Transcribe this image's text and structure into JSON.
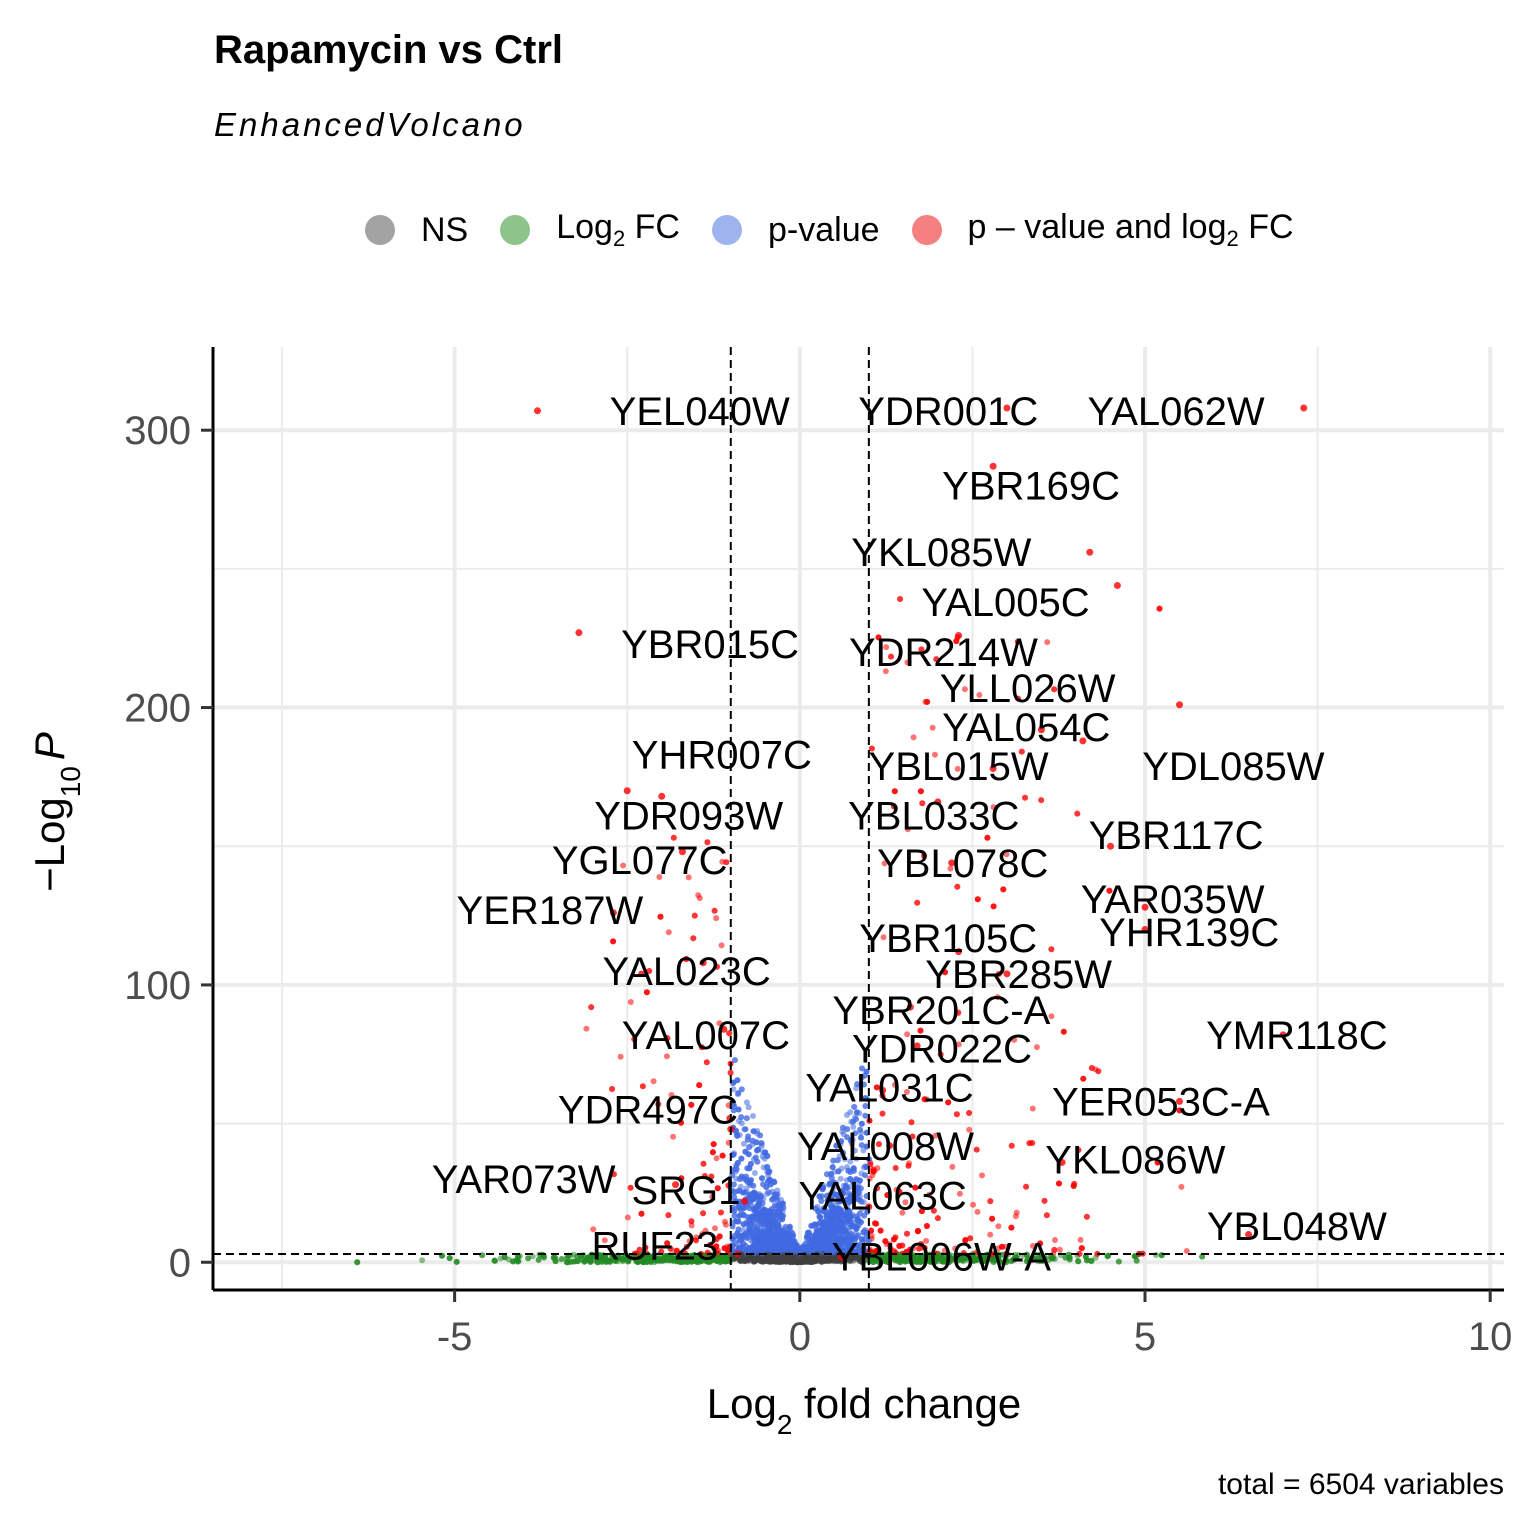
{
  "chart_data": {
    "type": "scatter",
    "title": "Rapamycin vs Ctrl",
    "subtitle": "EnhancedVolcano",
    "caption": "total = 6504 variables",
    "xlabel": {
      "main": "Log",
      "sub": "2",
      "rest": " fold change"
    },
    "ylabel": {
      "minus": "−",
      "main": "Log",
      "sub": "10",
      "italic": "P"
    },
    "xlim": [
      -8.5,
      10.2
    ],
    "ylim": [
      -10,
      330
    ],
    "xticks": [
      -5,
      0,
      5,
      10
    ],
    "xtick_labels": [
      "-5",
      "0",
      "5",
      "10"
    ],
    "yticks": [
      0,
      100,
      200,
      300
    ],
    "ytick_labels": [
      "0",
      "100",
      "200",
      "300"
    ],
    "grid": true,
    "legend_position": "top",
    "fc_cutoff": 1,
    "p_cutoff_line": 3,
    "legend": [
      {
        "key": "ns",
        "label": "NS",
        "color": "#999999"
      },
      {
        "key": "fc",
        "label": "Log",
        "sub": "2",
        "rest": " FC",
        "color": "#228B22"
      },
      {
        "key": "p",
        "label": "p-value",
        "color": "#4169E1"
      },
      {
        "key": "pfc",
        "label": "p – value and log",
        "sub": "2",
        "rest": " FC",
        "color": "#FF0000"
      }
    ],
    "colors": {
      "ns": "#404040",
      "fc": "#228B22",
      "p": "#4169E1",
      "pfc": "#FF0000"
    },
    "labeled_genes": [
      {
        "name": "YEL040W",
        "x": -3.8,
        "y": 307,
        "lx": -1.45,
        "ly": 307
      },
      {
        "name": "YDR001C",
        "x": 3.0,
        "y": 308,
        "lx": 2.15,
        "ly": 307
      },
      {
        "name": "YAL062W",
        "x": 7.3,
        "y": 308,
        "lx": 5.45,
        "ly": 307
      },
      {
        "name": "YBR169C",
        "x": 2.8,
        "y": 287,
        "lx": 3.35,
        "ly": 280
      },
      {
        "name": "YKL085W",
        "x": 4.2,
        "y": 256,
        "lx": 2.05,
        "ly": 256
      },
      {
        "name": "YAL005C",
        "x": 4.6,
        "y": 244,
        "lx": 2.98,
        "ly": 238
      },
      {
        "name": "YBR015C",
        "x": -3.2,
        "y": 227,
        "lx": -1.3,
        "ly": 223
      },
      {
        "name": "YDR214W",
        "x": 2.3,
        "y": 226,
        "lx": 2.08,
        "ly": 220
      },
      {
        "name": "YLL026W",
        "x": 5.5,
        "y": 201,
        "lx": 3.3,
        "ly": 207
      },
      {
        "name": "YAL054C",
        "x": 3.5,
        "y": 192,
        "lx": 3.28,
        "ly": 193
      },
      {
        "name": "YHR007C",
        "x": -2.5,
        "y": 170,
        "lx": -1.13,
        "ly": 183
      },
      {
        "name": "YBL015W",
        "x": 2.8,
        "y": 178,
        "lx": 2.3,
        "ly": 179
      },
      {
        "name": "YDL085W",
        "x": 4.1,
        "y": 188,
        "lx": 6.28,
        "ly": 179
      },
      {
        "name": "YDR093W",
        "x": -2.0,
        "y": 168,
        "lx": -1.61,
        "ly": 161
      },
      {
        "name": "YBL033C",
        "x": 2.0,
        "y": 166,
        "lx": 1.94,
        "ly": 161
      },
      {
        "name": "YBR117C",
        "x": 4.5,
        "y": 150,
        "lx": 5.45,
        "ly": 154
      },
      {
        "name": "YGL077C",
        "x": -1.7,
        "y": 148,
        "lx": -2.32,
        "ly": 145
      },
      {
        "name": "YBL078C",
        "x": 2.2,
        "y": 144,
        "lx": 2.36,
        "ly": 144
      },
      {
        "name": "YAR035W",
        "x": 5.0,
        "y": 128,
        "lx": 5.4,
        "ly": 131
      },
      {
        "name": "YER187W",
        "x": -2.7,
        "y": 126,
        "lx": -3.62,
        "ly": 127
      },
      {
        "name": "YHR139C",
        "x": 5.0,
        "y": 120,
        "lx": 5.64,
        "ly": 119
      },
      {
        "name": "YBR105C",
        "x": 2.3,
        "y": 112,
        "lx": 2.15,
        "ly": 117
      },
      {
        "name": "YBR285W",
        "x": 3.0,
        "y": 104,
        "lx": 3.17,
        "ly": 104
      },
      {
        "name": "YAL023C",
        "x": -1.4,
        "y": 108,
        "lx": -1.64,
        "ly": 105
      },
      {
        "name": "YBR201C-A",
        "x": 1.6,
        "y": 92,
        "lx": 2.05,
        "ly": 91
      },
      {
        "name": "YAL007C",
        "x": -1.1,
        "y": 84,
        "lx": -1.36,
        "ly": 82
      },
      {
        "name": "YDR022C",
        "x": 1.7,
        "y": 78,
        "lx": 2.06,
        "ly": 77
      },
      {
        "name": "YMR118C",
        "x": 7.0,
        "y": 82,
        "lx": 7.2,
        "ly": 82
      },
      {
        "name": "YAL031C",
        "x": 1.2,
        "y": 62,
        "lx": 1.3,
        "ly": 63
      },
      {
        "name": "YDR497C",
        "x": -1.0,
        "y": 48,
        "lx": -2.2,
        "ly": 55
      },
      {
        "name": "YER053C-A",
        "x": 5.5,
        "y": 58,
        "lx": 5.23,
        "ly": 58
      },
      {
        "name": "YAL008W",
        "x": 1.3,
        "y": 42,
        "lx": 1.24,
        "ly": 42
      },
      {
        "name": "YKL086W",
        "x": 3.8,
        "y": 36,
        "lx": 4.86,
        "ly": 37
      },
      {
        "name": "YAR073W",
        "x": -1.8,
        "y": 28,
        "lx": -4.0,
        "ly": 30
      },
      {
        "name": "SRG1",
        "x": -0.8,
        "y": 22,
        "lx": -1.65,
        "ly": 26
      },
      {
        "name": "YAL063C",
        "x": 1.0,
        "y": 20,
        "lx": 1.2,
        "ly": 24
      },
      {
        "name": "YBL048W",
        "x": 6.5,
        "y": 10,
        "lx": 7.2,
        "ly": 13
      },
      {
        "name": "RUF23",
        "x": -0.9,
        "y": 3,
        "lx": -2.1,
        "ly": 6
      },
      {
        "name": "YBL006W-A",
        "x": 0.6,
        "y": 2,
        "lx": 2.05,
        "ly": 2
      }
    ]
  }
}
